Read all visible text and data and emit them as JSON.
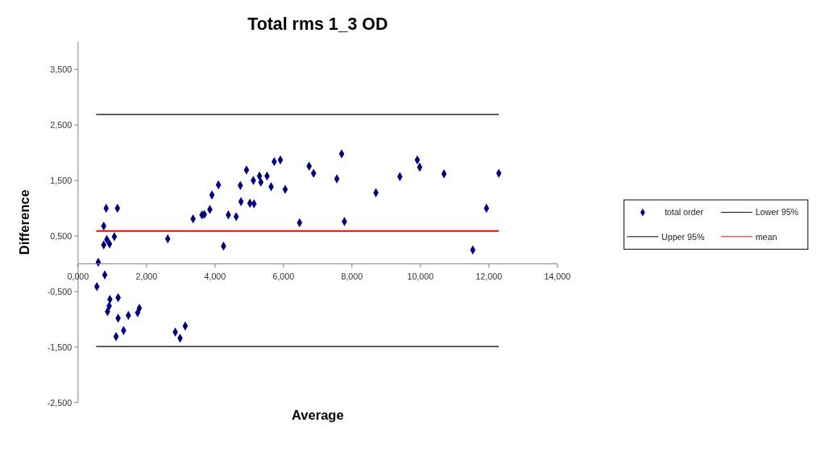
{
  "chart_data": {
    "type": "scatter",
    "title": "Total rms 1_3 OD",
    "xlabel": "Average",
    "ylabel": "Difference",
    "xlim": [
      0,
      14
    ],
    "xticks": [
      {
        "value": 0,
        "label": "0,000"
      },
      {
        "value": 2,
        "label": "2,000"
      },
      {
        "value": 4,
        "label": "4,000"
      },
      {
        "value": 6,
        "label": "6,000"
      },
      {
        "value": 8,
        "label": "8,000"
      },
      {
        "value": 10,
        "label": "10,000"
      },
      {
        "value": 12,
        "label": "12,000"
      },
      {
        "value": 14,
        "label": "14,000"
      }
    ],
    "ylim": [
      -2.5,
      4
    ],
    "yticks": [
      {
        "value": -2.5,
        "label": "-2,500"
      },
      {
        "value": -1.5,
        "label": "-1,500"
      },
      {
        "value": -0.5,
        "label": "-0,500"
      },
      {
        "value": 0.5,
        "label": "0,500"
      },
      {
        "value": 1.5,
        "label": "1,500"
      },
      {
        "value": 2.5,
        "label": "2,500"
      },
      {
        "value": 3.5,
        "label": "3,500"
      }
    ],
    "grid": false,
    "legend": "right",
    "series": [
      {
        "name": "total order",
        "marker": "diamond",
        "color": "#000080",
        "x": [
          0.59,
          0.55,
          0.75,
          0.82,
          0.75,
          0.84,
          0.92,
          0.78,
          1.06,
          1.15,
          0.93,
          1.17,
          0.91,
          0.86,
          1.17,
          1.11,
          1.33,
          1.47,
          1.74,
          1.79,
          2.62,
          2.84,
          2.98,
          3.13,
          3.36,
          3.62,
          3.69,
          3.85,
          3.91,
          4.1,
          4.25,
          4.39,
          4.62,
          4.74,
          4.76,
          4.92,
          5.02,
          5.14,
          5.12,
          5.3,
          5.34,
          5.52,
          5.64,
          5.73,
          5.91,
          6.05,
          6.47,
          6.75,
          6.88,
          7.56,
          7.7,
          7.78,
          8.7,
          9.4,
          9.91,
          9.98,
          10.69,
          11.53,
          11.93,
          12.29
        ],
        "values": [
          0.03,
          -0.41,
          0.68,
          1.0,
          0.34,
          0.44,
          0.36,
          -0.2,
          0.49,
          1.0,
          -0.64,
          -0.61,
          -0.76,
          -0.86,
          -0.98,
          -1.31,
          -1.2,
          -0.93,
          -0.88,
          -0.8,
          0.45,
          -1.23,
          -1.34,
          -1.12,
          0.81,
          0.88,
          0.89,
          0.98,
          1.24,
          1.42,
          0.32,
          0.88,
          0.85,
          1.41,
          1.12,
          1.69,
          1.09,
          1.08,
          1.5,
          1.58,
          1.47,
          1.58,
          1.39,
          1.84,
          1.87,
          1.34,
          0.74,
          1.76,
          1.63,
          1.53,
          1.98,
          0.76,
          1.28,
          1.57,
          1.87,
          1.74,
          1.62,
          0.25,
          1.0,
          1.63
        ]
      },
      {
        "name": "Lower 95%",
        "type": "line",
        "marker": "none",
        "color": "#000000",
        "line_style": "solid",
        "x": [
          0.53,
          12.29
        ],
        "values": [
          -1.49,
          -1.49
        ]
      },
      {
        "name": "Upper 95%",
        "type": "line",
        "marker": "none",
        "color": "#000000",
        "line_style": "solid",
        "x": [
          0.53,
          12.29
        ],
        "values": [
          2.69,
          2.69
        ]
      },
      {
        "name": "mean",
        "type": "line",
        "marker": "none",
        "color": "#ff0000",
        "line_style": "solid",
        "x": [
          0.53,
          12.29
        ],
        "values": [
          0.59,
          0.59
        ]
      }
    ]
  }
}
